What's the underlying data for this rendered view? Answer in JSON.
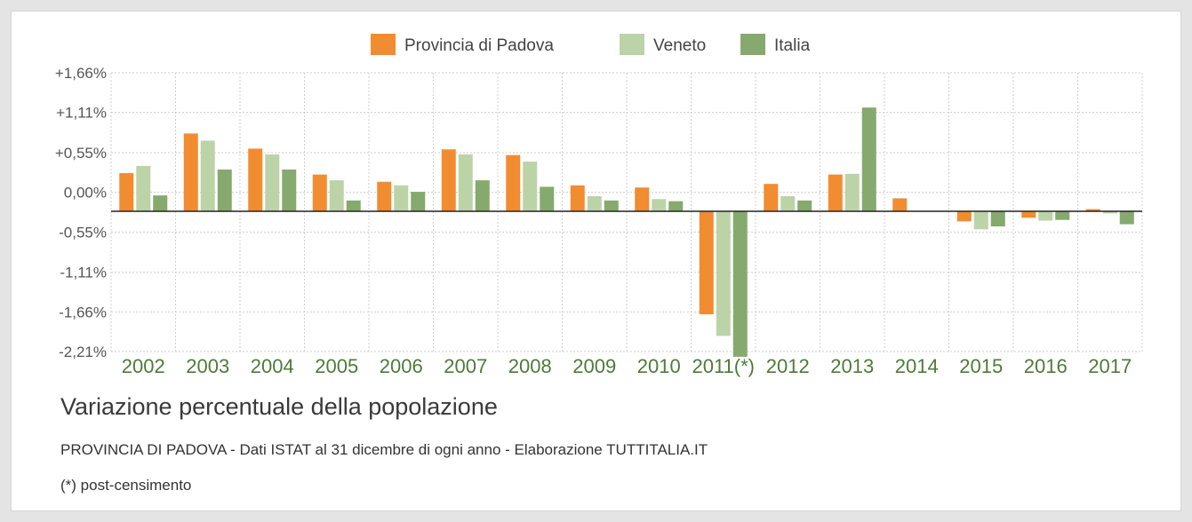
{
  "chart_data": {
    "type": "bar",
    "categories": [
      "2002",
      "2003",
      "2004",
      "2005",
      "2006",
      "2007",
      "2008",
      "2009",
      "2010",
      "2011(*)",
      "2012",
      "2013",
      "2014",
      "2015",
      "2016",
      "2017"
    ],
    "series": [
      {
        "name": "Provincia di Padova",
        "color": "#f28c30",
        "values": [
          0.53,
          1.08,
          0.87,
          0.51,
          0.41,
          0.86,
          0.78,
          0.36,
          0.33,
          -1.43,
          0.38,
          0.51,
          0.18,
          -0.14,
          -0.09,
          0.03
        ]
      },
      {
        "name": "Veneto",
        "color": "#bcd3a8",
        "values": [
          0.63,
          0.98,
          0.79,
          0.43,
          0.36,
          0.79,
          0.69,
          0.21,
          0.17,
          -1.73,
          0.21,
          0.52,
          0.0,
          -0.25,
          -0.13,
          -0.03
        ]
      },
      {
        "name": "Italia",
        "color": "#86a96e",
        "values": [
          0.22,
          0.58,
          0.58,
          0.15,
          0.27,
          0.43,
          0.34,
          0.15,
          0.14,
          -2.02,
          0.15,
          1.44,
          0.0,
          -0.21,
          -0.12,
          -0.18
        ]
      }
    ],
    "yticks": [
      "+1,66%",
      "+1,11%",
      "+0,55%",
      "0,00%",
      "-0,55%",
      "-1,11%",
      "-1,66%",
      "-2,21%"
    ],
    "ylim": [
      -2.21,
      1.66
    ],
    "grid": true,
    "legend_position": "top-center",
    "title": "Variazione percentuale della popolazione",
    "source": "PROVINCIA DI PADOVA - Dati ISTAT al 31 dicembre di ogni anno - Elaborazione TUTTITALIA.IT",
    "note": "(*) post-censimento"
  },
  "colors": {
    "axis_text": "#555555",
    "category_text": "#4f7a3a",
    "grid": "#cfcfcf",
    "zero_line": "#222222"
  }
}
